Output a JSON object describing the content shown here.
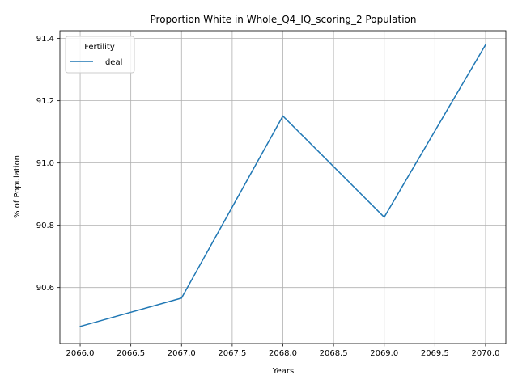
{
  "chart_data": {
    "type": "line",
    "title": "Proportion White in Whole_Q4_IQ_scoring_2 Population",
    "xlabel": "Years",
    "ylabel": "% of Population",
    "x": [
      2066,
      2067,
      2068,
      2069,
      2070
    ],
    "series": [
      {
        "name": "Ideal",
        "color": "#1f77b4",
        "values": [
          90.475,
          90.566,
          91.151,
          90.826,
          91.38
        ]
      }
    ],
    "xlim": [
      2065.8,
      2070.2
    ],
    "ylim": [
      90.42,
      91.425
    ],
    "xticks": [
      "2066.0",
      "2066.5",
      "2067.0",
      "2067.5",
      "2068.0",
      "2068.5",
      "2069.0",
      "2069.5",
      "2070.0"
    ],
    "yticks": [
      "90.6",
      "90.8",
      "91.0",
      "91.2",
      "91.4"
    ],
    "grid": true,
    "legend": {
      "title": "Fertility",
      "placement": "top-left"
    }
  }
}
